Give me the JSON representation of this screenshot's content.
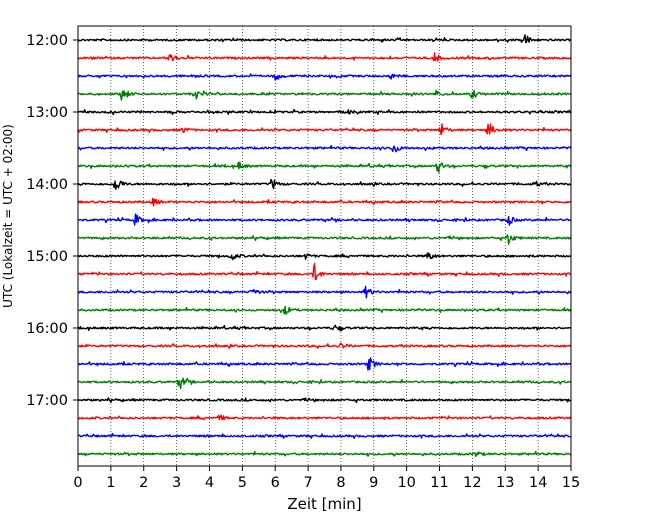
{
  "chart_data": {
    "type": "line",
    "title": "",
    "xlabel": "Zeit  [min]",
    "ylabel": "UTC (Lokalzeit = UTC + 02:00)",
    "xlim": [
      0,
      15
    ],
    "x_ticks": [
      0,
      1,
      2,
      3,
      4,
      5,
      6,
      7,
      8,
      9,
      10,
      11,
      12,
      13,
      14,
      15
    ],
    "y_tick_labels": [
      "12:00",
      "13:00",
      "14:00",
      "15:00",
      "16:00",
      "17:00"
    ],
    "grid": "vertical dotted",
    "trace_interval_min": 15,
    "trace_colors": [
      "#000000",
      "#ff0000",
      "#0000ff",
      "#008000"
    ],
    "series": [
      {
        "start_utc": "12:00",
        "color": "#000000",
        "events": [
          [
            13.55,
            9
          ]
        ]
      },
      {
        "start_utc": "12:15",
        "color": "#ff0000",
        "events": [
          [
            2.8,
            6
          ],
          [
            10.85,
            5
          ]
        ]
      },
      {
        "start_utc": "12:30",
        "color": "#0000ff",
        "events": [
          [
            6.0,
            5
          ],
          [
            9.5,
            3
          ]
        ]
      },
      {
        "start_utc": "12:45",
        "color": "#008000",
        "events": [
          [
            1.35,
            8
          ],
          [
            3.6,
            4
          ],
          [
            12.0,
            5
          ],
          [
            10.9,
            3
          ]
        ]
      },
      {
        "start_utc": "13:00",
        "color": "#000000",
        "events": [
          [
            8.15,
            3
          ]
        ]
      },
      {
        "start_utc": "13:15",
        "color": "#ff0000",
        "events": [
          [
            11.05,
            7
          ],
          [
            12.5,
            8
          ],
          [
            3.2,
            3
          ]
        ]
      },
      {
        "start_utc": "13:30",
        "color": "#0000ff",
        "events": [
          [
            9.6,
            6
          ]
        ]
      },
      {
        "start_utc": "13:45",
        "color": "#008000",
        "events": [
          [
            10.95,
            7
          ],
          [
            4.9,
            4
          ]
        ]
      },
      {
        "start_utc": "14:00",
        "color": "#000000",
        "events": [
          [
            1.15,
            9
          ],
          [
            5.9,
            6
          ],
          [
            13.9,
            3
          ]
        ]
      },
      {
        "start_utc": "14:15",
        "color": "#ff0000",
        "events": [
          [
            2.3,
            4
          ]
        ]
      },
      {
        "start_utc": "14:30",
        "color": "#0000ff",
        "events": [
          [
            1.75,
            6
          ],
          [
            13.1,
            5
          ]
        ]
      },
      {
        "start_utc": "14:45",
        "color": "#008000",
        "events": [
          [
            13.1,
            6
          ]
        ]
      },
      {
        "start_utc": "15:00",
        "color": "#000000",
        "events": [
          [
            4.65,
            5
          ],
          [
            10.65,
            5
          ],
          [
            6.9,
            3
          ]
        ]
      },
      {
        "start_utc": "15:15",
        "color": "#ff0000",
        "events": [
          [
            7.2,
            10
          ]
        ]
      },
      {
        "start_utc": "15:30",
        "color": "#0000ff",
        "events": [
          [
            8.75,
            6
          ],
          [
            5.3,
            4
          ]
        ]
      },
      {
        "start_utc": "15:45",
        "color": "#008000",
        "events": [
          [
            6.3,
            5
          ]
        ]
      },
      {
        "start_utc": "16:00",
        "color": "#000000",
        "events": [
          [
            7.8,
            3
          ]
        ]
      },
      {
        "start_utc": "16:15",
        "color": "#ff0000",
        "events": [
          [
            8.0,
            3
          ]
        ]
      },
      {
        "start_utc": "16:30",
        "color": "#0000ff",
        "events": [
          [
            8.85,
            8
          ]
        ]
      },
      {
        "start_utc": "16:45",
        "color": "#008000",
        "events": [
          [
            3.1,
            8
          ]
        ]
      },
      {
        "start_utc": "17:00",
        "color": "#000000",
        "events": []
      },
      {
        "start_utc": "17:15",
        "color": "#ff0000",
        "events": [
          [
            4.3,
            3
          ]
        ]
      },
      {
        "start_utc": "17:30",
        "color": "#0000ff",
        "events": []
      },
      {
        "start_utc": "17:45",
        "color": "#008000",
        "events": [
          [
            12.1,
            3
          ]
        ]
      }
    ]
  }
}
